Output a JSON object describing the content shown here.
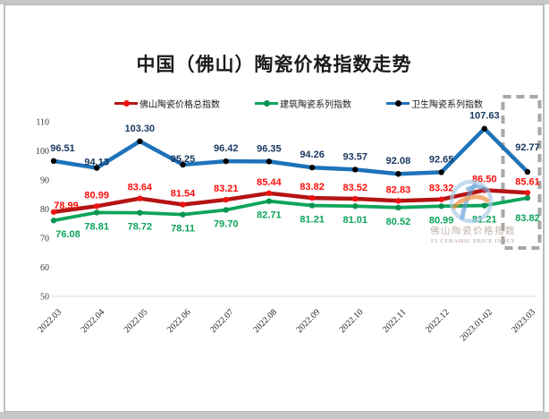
{
  "chart_data": {
    "type": "line",
    "title": "中国（佛山）陶瓷价格指数走势",
    "categories": [
      "2022.03",
      "2022.04",
      "2022.05",
      "2022.06",
      "2022.07",
      "2022.08",
      "2022.09",
      "2022.10",
      "2022.11",
      "2022.12",
      "2023.01-02",
      "2023.03"
    ],
    "series": [
      {
        "name": "佛山陶瓷价格总指数",
        "values": [
          78.99,
          80.99,
          83.64,
          81.54,
          83.21,
          85.44,
          83.82,
          83.52,
          82.83,
          83.32,
          86.5,
          85.61
        ],
        "color": "#b51413",
        "marker_color": "#ee1311",
        "label_color": "#fb0f0c",
        "line_width": 4.5,
        "label_dy": -9,
        "label_dy_overrides": {
          "0": -4
        },
        "label_dx_overrides": {
          "0": 14
        }
      },
      {
        "name": "建筑陶瓷系列指数",
        "values": [
          76.08,
          78.81,
          78.72,
          78.11,
          79.7,
          82.71,
          81.21,
          81.01,
          80.52,
          80.99,
          81.21,
          83.82
        ],
        "color": "#0ea55c",
        "marker_color": "#079350",
        "label_color": "#0ca45b",
        "line_width": 3.8,
        "label_dy": 19,
        "label_dy_overrides": {
          "11": 26
        },
        "label_dx_overrides": {
          "0": 16
        }
      },
      {
        "name": "卫生陶瓷系列指数",
        "values": [
          96.51,
          94.13,
          103.3,
          95.25,
          96.42,
          96.35,
          94.26,
          93.57,
          92.08,
          92.65,
          107.63,
          92.77
        ],
        "color": "#1e73b9",
        "marker_color": "#000000",
        "label_color": "#17375e",
        "line_width": 4.5,
        "label_dy": -11,
        "label_dy_overrides": {
          "1": -3,
          "3": -3,
          "11": -24
        },
        "label_dx_overrides": {
          "0": 10
        }
      }
    ],
    "ylim": [
      50,
      110
    ],
    "y_ticks": [
      110,
      100,
      90,
      80,
      70,
      60,
      50
    ],
    "grid": false,
    "legend_position": "top",
    "axis_line_color": "#d9d9d9",
    "highlight_box": {
      "category": "2023.03",
      "color": "#a8a8a8",
      "style": "dashed"
    }
  },
  "watermark": {
    "line1": "佛山陶瓷价格指数",
    "line2": "FS CERAMIC PRICE INDEX",
    "ring_color": "#a9cbe8",
    "f_blue": "#5b9bd5",
    "f_orange": "#f08a3c"
  }
}
